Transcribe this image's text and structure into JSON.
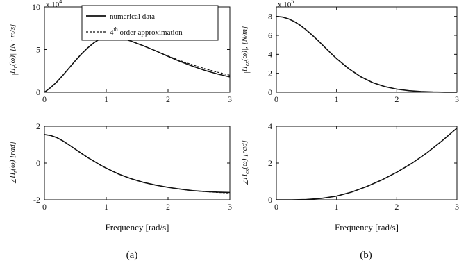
{
  "chart_data": [
    {
      "id": "a_top",
      "type": "line",
      "title": "",
      "ylabel": "|H_r(ω)| [N·m/s]",
      "xlabel": "",
      "multiplier": "x 10^4",
      "xlim": [
        0,
        3
      ],
      "ylim": [
        0,
        10
      ],
      "xticks": [
        "0",
        "1",
        "2",
        "3"
      ],
      "yticks": [
        "0",
        "5",
        "10"
      ],
      "legend": {
        "placement": "top-right",
        "entries": [
          "numerical data",
          "4th order approximation"
        ]
      },
      "series": [
        {
          "name": "numerical data",
          "style": "solid",
          "x": [
            0,
            0.1,
            0.2,
            0.3,
            0.4,
            0.5,
            0.6,
            0.7,
            0.8,
            0.9,
            1.0,
            1.1,
            1.2,
            1.4,
            1.6,
            1.8,
            2.0,
            2.2,
            2.4,
            2.6,
            2.8,
            3.0
          ],
          "y": [
            0,
            0.55,
            1.2,
            2.0,
            2.85,
            3.7,
            4.5,
            5.2,
            5.8,
            6.25,
            6.5,
            6.55,
            6.45,
            6.0,
            5.45,
            4.85,
            4.2,
            3.6,
            3.05,
            2.55,
            2.15,
            1.8
          ]
        },
        {
          "name": "4th order approximation",
          "style": "dashed",
          "x": [
            0,
            0.1,
            0.2,
            0.3,
            0.4,
            0.5,
            0.6,
            0.7,
            0.8,
            0.9,
            1.0,
            1.1,
            1.2,
            1.4,
            1.6,
            1.8,
            2.0,
            2.2,
            2.4,
            2.6,
            2.8,
            3.0
          ],
          "y": [
            0,
            0.55,
            1.2,
            2.0,
            2.85,
            3.7,
            4.5,
            5.2,
            5.8,
            6.25,
            6.5,
            6.55,
            6.45,
            6.0,
            5.45,
            4.85,
            4.25,
            3.7,
            3.2,
            2.75,
            2.35,
            2.0
          ]
        }
      ]
    },
    {
      "id": "a_bottom",
      "type": "line",
      "title": "",
      "ylabel": "∠H_r(ω) [rad]",
      "xlabel": "Frequency [rad/s]",
      "xlim": [
        0,
        3
      ],
      "ylim": [
        -2,
        2
      ],
      "xticks": [
        "0",
        "1",
        "2",
        "3"
      ],
      "yticks": [
        "-2",
        "0",
        "2"
      ],
      "series": [
        {
          "name": "numerical data",
          "style": "solid",
          "x": [
            0,
            0.1,
            0.2,
            0.3,
            0.4,
            0.5,
            0.6,
            0.7,
            0.8,
            0.9,
            1.0,
            1.2,
            1.4,
            1.6,
            1.8,
            2.0,
            2.2,
            2.4,
            2.6,
            2.8,
            3.0
          ],
          "y": [
            1.55,
            1.5,
            1.38,
            1.2,
            0.98,
            0.75,
            0.52,
            0.3,
            0.1,
            -0.1,
            -0.28,
            -0.6,
            -0.85,
            -1.05,
            -1.2,
            -1.32,
            -1.42,
            -1.5,
            -1.55,
            -1.58,
            -1.6
          ]
        },
        {
          "name": "4th order approximation",
          "style": "dashed",
          "x": [
            0,
            0.1,
            0.2,
            0.3,
            0.4,
            0.5,
            0.6,
            0.7,
            0.8,
            0.9,
            1.0,
            1.2,
            1.4,
            1.6,
            1.8,
            2.0,
            2.2,
            2.4,
            2.6,
            2.8,
            3.0
          ],
          "y": [
            1.55,
            1.5,
            1.38,
            1.2,
            0.98,
            0.75,
            0.52,
            0.3,
            0.1,
            -0.1,
            -0.28,
            -0.6,
            -0.85,
            -1.05,
            -1.2,
            -1.32,
            -1.42,
            -1.5,
            -1.56,
            -1.6,
            -1.63
          ]
        }
      ]
    },
    {
      "id": "b_top",
      "type": "line",
      "title": "",
      "ylabel": "|H_ex(ω)|, [N/m]",
      "xlabel": "",
      "multiplier": "x 10^5",
      "xlim": [
        0,
        3
      ],
      "ylim": [
        0,
        9
      ],
      "xticks": [
        "0",
        "1",
        "2",
        "3"
      ],
      "yticks": [
        "0",
        "2",
        "4",
        "6",
        "8"
      ],
      "series": [
        {
          "name": "",
          "style": "solid",
          "x": [
            0,
            0.1,
            0.2,
            0.3,
            0.4,
            0.5,
            0.6,
            0.7,
            0.8,
            0.9,
            1.0,
            1.2,
            1.4,
            1.6,
            1.8,
            2.0,
            2.2,
            2.4,
            2.6,
            2.8,
            3.0
          ],
          "y": [
            8.0,
            7.93,
            7.75,
            7.45,
            7.05,
            6.55,
            6.0,
            5.4,
            4.78,
            4.15,
            3.55,
            2.5,
            1.65,
            1.02,
            0.6,
            0.33,
            0.17,
            0.08,
            0.03,
            0.01,
            0.0
          ]
        }
      ]
    },
    {
      "id": "b_bottom",
      "type": "line",
      "title": "",
      "ylabel": "∠H_ex(ω) [rad]",
      "xlabel": "Frequency [rad/s]",
      "xlim": [
        0,
        3
      ],
      "ylim": [
        0,
        4
      ],
      "xticks": [
        "0",
        "1",
        "2",
        "3"
      ],
      "yticks": [
        "0",
        "2",
        "4"
      ],
      "series": [
        {
          "name": "",
          "style": "solid",
          "x": [
            0,
            0.25,
            0.5,
            0.75,
            1.0,
            1.25,
            1.5,
            1.75,
            2.0,
            2.25,
            2.5,
            2.75,
            3.0
          ],
          "y": [
            0,
            0.0,
            0.02,
            0.08,
            0.2,
            0.42,
            0.72,
            1.08,
            1.5,
            1.98,
            2.55,
            3.2,
            3.9
          ]
        }
      ]
    }
  ],
  "captions": {
    "left": "(a)",
    "right": "(b)"
  }
}
